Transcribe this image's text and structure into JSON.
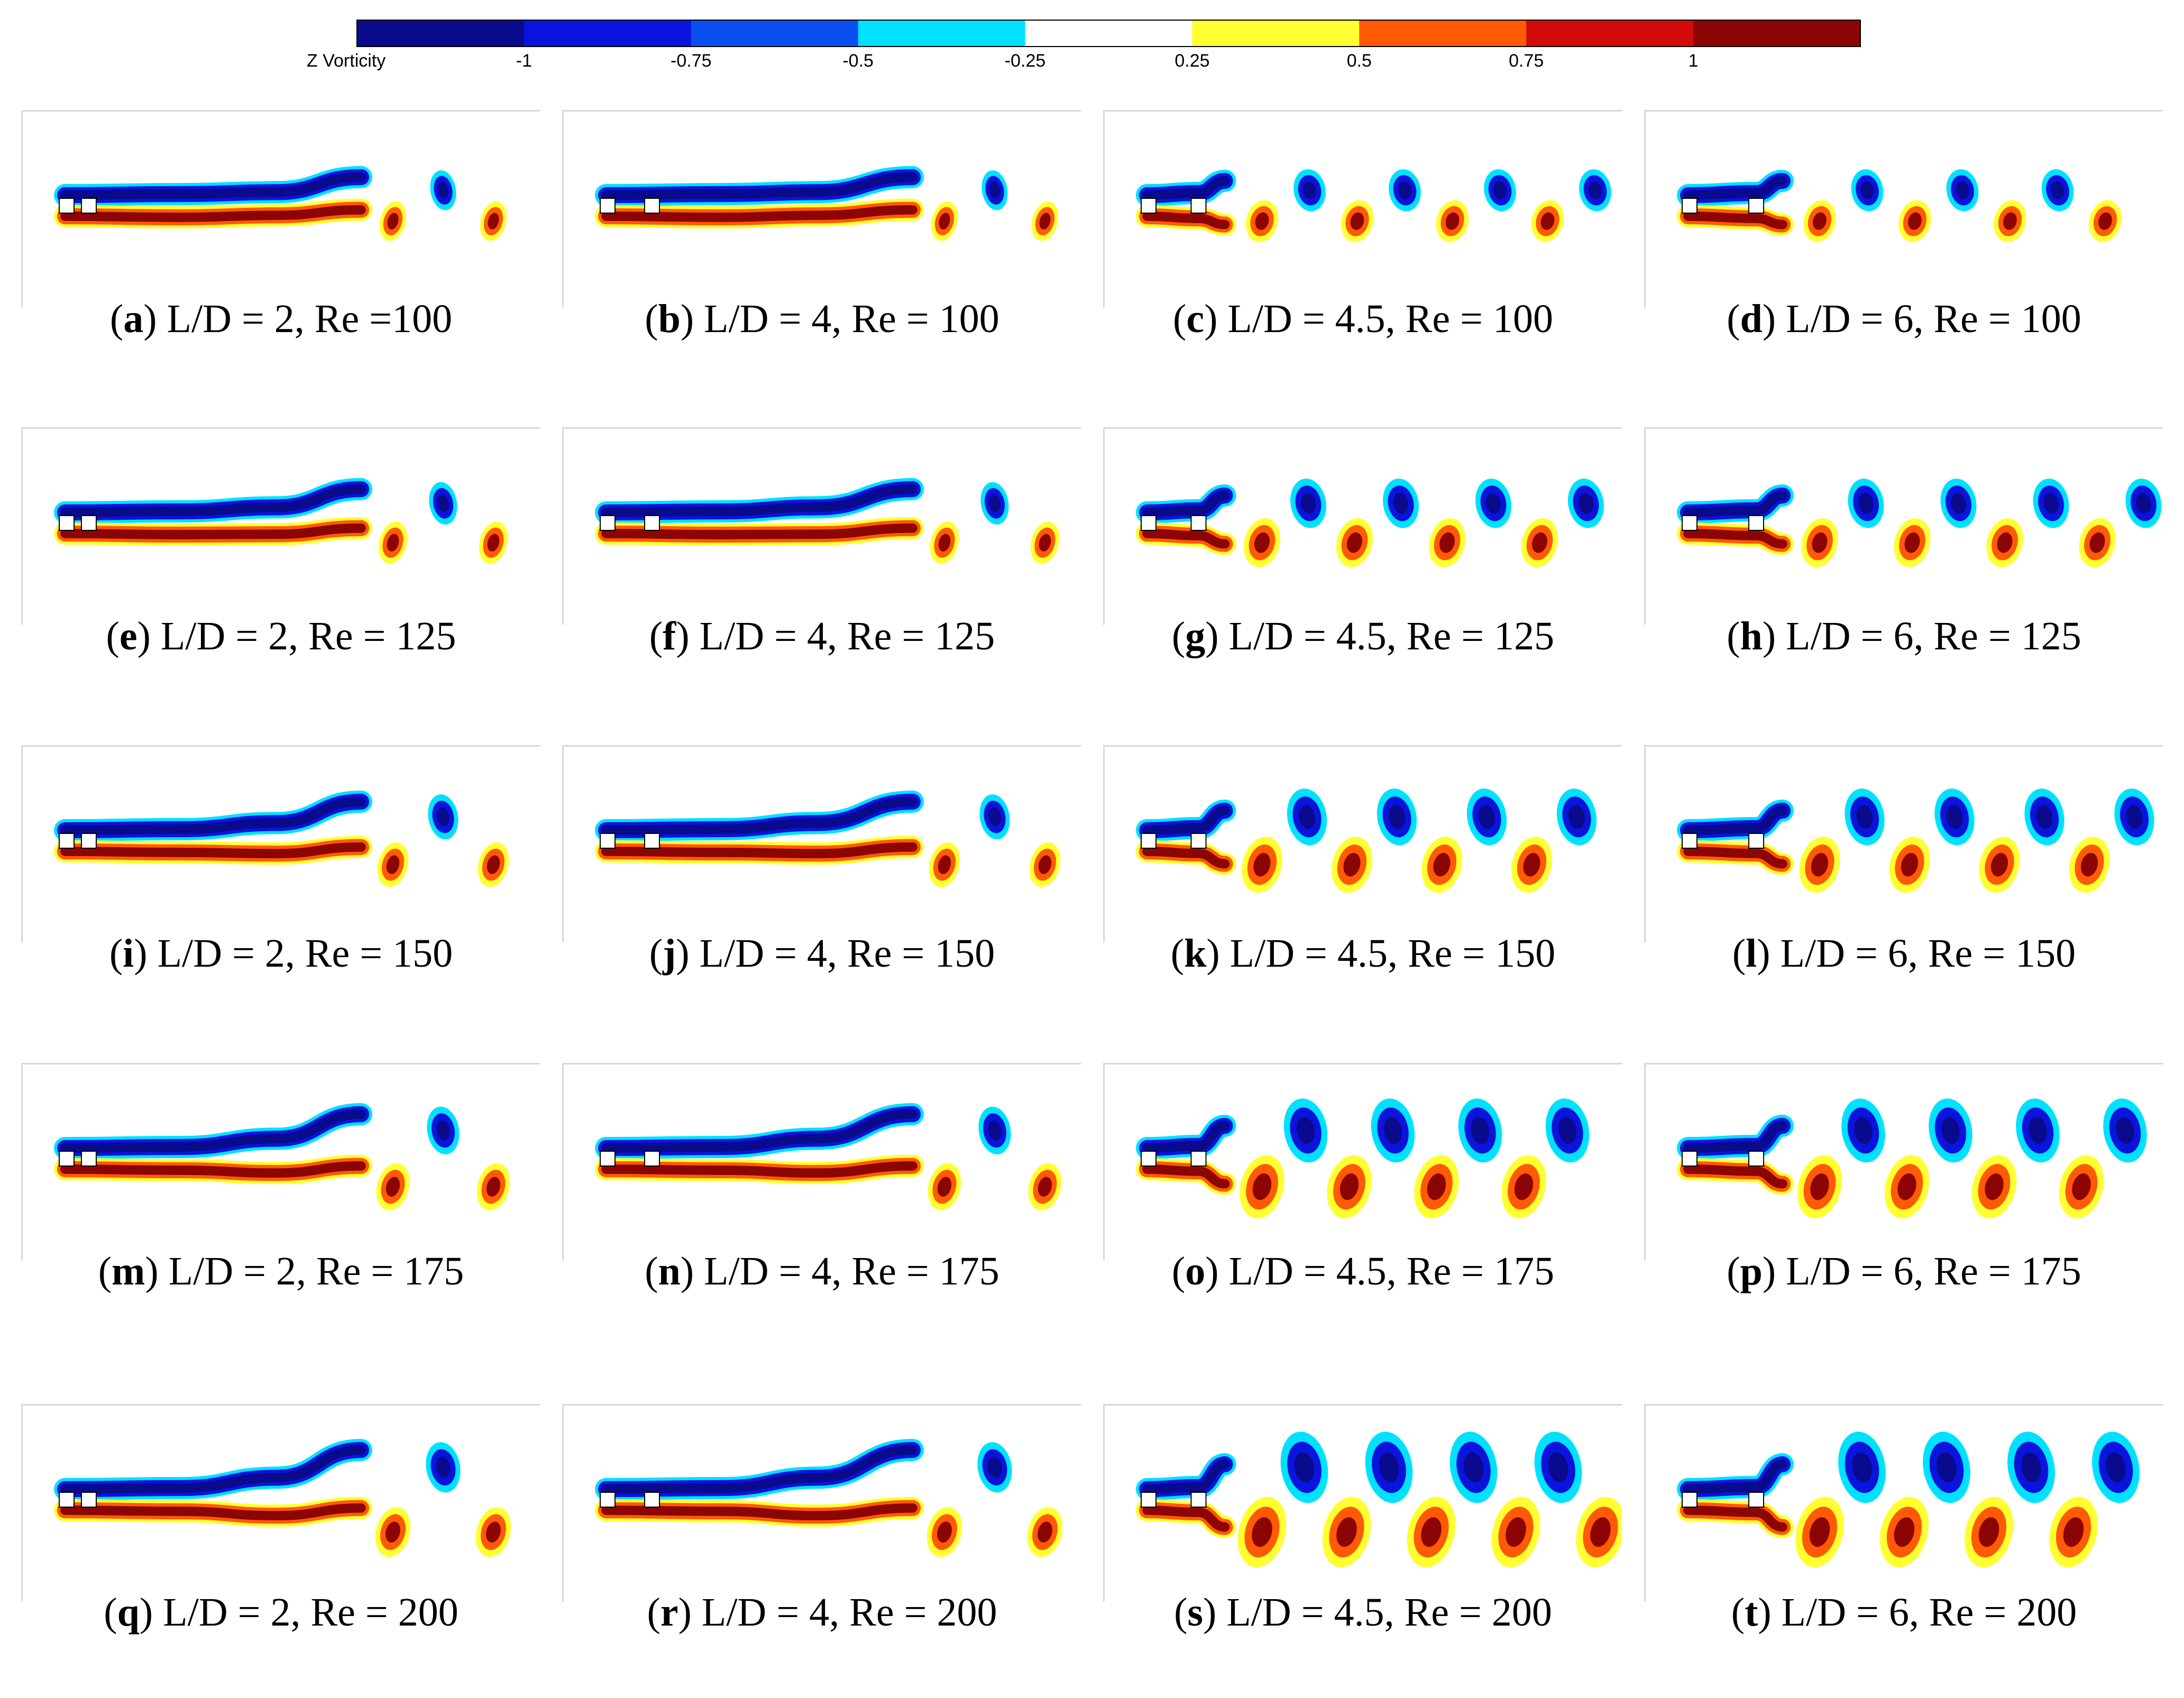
{
  "colorbar": {
    "label": "Z Vorticity",
    "ticks": [
      "-1",
      "-0.75",
      "-0.5",
      "-0.25",
      "0.25",
      "0.5",
      "0.75",
      "1"
    ],
    "bands": [
      "#0a0a8c",
      "#0a14dc",
      "#0a50f0",
      "#00e1ff",
      "#ffffff",
      "#ffff32",
      "#ff5a05",
      "#d20a0a",
      "#8c0505"
    ]
  },
  "colors": {
    "neg_strong": "#0a0a8c",
    "neg_mid": "#0a14dc",
    "neg_weak": "#00e1ff",
    "pos_weak": "#ffff32",
    "pos_mid": "#ff5a05",
    "pos_strong": "#8c0505"
  },
  "panels": [
    {
      "letter": "a",
      "caption": "L/D = 2, Re =100",
      "ld": 2,
      "re": 100
    },
    {
      "letter": "b",
      "caption": "L/D = 4, Re = 100",
      "ld": 4,
      "re": 100
    },
    {
      "letter": "c",
      "caption": "L/D = 4.5, Re = 100",
      "ld": 4.5,
      "re": 100
    },
    {
      "letter": "d",
      "caption": "L/D = 6, Re = 100",
      "ld": 6,
      "re": 100
    },
    {
      "letter": "e",
      "caption": "L/D = 2, Re = 125",
      "ld": 2,
      "re": 125
    },
    {
      "letter": "f",
      "caption": "L/D = 4, Re = 125",
      "ld": 4,
      "re": 125
    },
    {
      "letter": "g",
      "caption": "L/D = 4.5, Re = 125",
      "ld": 4.5,
      "re": 125
    },
    {
      "letter": "h",
      "caption": "L/D = 6, Re = 125",
      "ld": 6,
      "re": 125
    },
    {
      "letter": "i",
      "caption": "L/D = 2, Re = 150",
      "ld": 2,
      "re": 150
    },
    {
      "letter": "j",
      "caption": "L/D = 4, Re = 150",
      "ld": 4,
      "re": 150
    },
    {
      "letter": "k",
      "caption": "L/D = 4.5, Re = 150",
      "ld": 4.5,
      "re": 150
    },
    {
      "letter": "l",
      "caption": "L/D = 6, Re = 150",
      "ld": 6,
      "re": 150
    },
    {
      "letter": "m",
      "caption": "L/D = 2, Re = 175",
      "ld": 2,
      "re": 175
    },
    {
      "letter": "n",
      "caption": "L/D = 4, Re = 175",
      "ld": 4,
      "re": 175
    },
    {
      "letter": "o",
      "caption": "L/D = 4.5, Re = 175",
      "ld": 4.5,
      "re": 175
    },
    {
      "letter": "p",
      "caption": "L/D = 6, Re = 175",
      "ld": 6,
      "re": 175
    },
    {
      "letter": "q",
      "caption": "L/D = 2, Re = 200",
      "ld": 2,
      "re": 200
    },
    {
      "letter": "r",
      "caption": "L/D = 4, Re = 200",
      "ld": 4,
      "re": 200
    },
    {
      "letter": "s",
      "caption": "L/D = 4.5, Re = 200",
      "ld": 4.5,
      "re": 200
    },
    {
      "letter": "t",
      "caption": "L/D = 6, Re = 200",
      "ld": 6,
      "re": 200
    }
  ]
}
